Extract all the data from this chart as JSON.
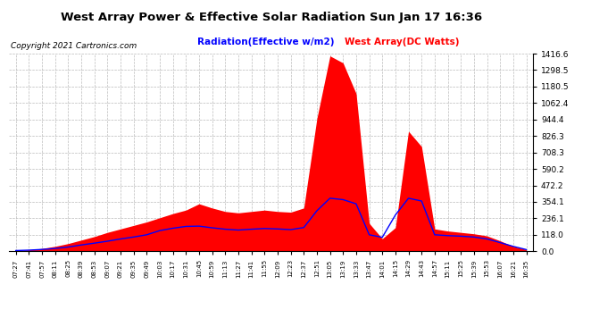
{
  "title": "West Array Power & Effective Solar Radiation Sun Jan 17 16:36",
  "copyright": "Copyright 2021 Cartronics.com",
  "legend_radiation": "Radiation(Effective w/m2)",
  "legend_west_array": "West Array(DC Watts)",
  "yticks": [
    0.0,
    118.0,
    236.1,
    354.1,
    472.2,
    590.2,
    708.3,
    826.3,
    944.4,
    1062.4,
    1180.5,
    1298.5,
    1416.6
  ],
  "ymax": 1416.6,
  "background_color": "#ffffff",
  "plot_bg_color": "#ffffff",
  "grid_color": "#aaaaaa",
  "fill_color": "#ff0000",
  "line_color": "#0000ff",
  "title_color": "#000000",
  "copyright_color": "#000000",
  "radiation_label_color": "#0000ff",
  "west_array_label_color": "#ff0000",
  "x_labels": [
    "07:27",
    "07:41",
    "07:57",
    "08:11",
    "08:25",
    "08:39",
    "08:53",
    "09:07",
    "09:21",
    "09:35",
    "09:49",
    "10:03",
    "10:17",
    "10:31",
    "10:45",
    "10:59",
    "11:13",
    "11:27",
    "11:41",
    "11:55",
    "12:09",
    "12:23",
    "12:37",
    "12:51",
    "13:05",
    "13:19",
    "13:33",
    "13:47",
    "14:01",
    "14:15",
    "14:29",
    "14:43",
    "14:57",
    "15:11",
    "15:25",
    "15:39",
    "15:53",
    "16:07",
    "16:21",
    "16:35"
  ],
  "west_array": [
    5,
    10,
    20,
    35,
    55,
    80,
    105,
    135,
    160,
    185,
    210,
    240,
    270,
    295,
    340,
    310,
    285,
    275,
    285,
    295,
    285,
    280,
    310,
    950,
    1400,
    1350,
    1130,
    200,
    90,
    170,
    860,
    750,
    160,
    145,
    135,
    125,
    110,
    75,
    35,
    12
  ],
  "radiation": [
    5,
    8,
    13,
    20,
    30,
    45,
    58,
    72,
    88,
    102,
    118,
    148,
    165,
    178,
    180,
    168,
    158,
    152,
    158,
    163,
    160,
    155,
    170,
    290,
    380,
    370,
    340,
    118,
    100,
    260,
    380,
    360,
    118,
    112,
    108,
    102,
    88,
    62,
    35,
    12
  ]
}
